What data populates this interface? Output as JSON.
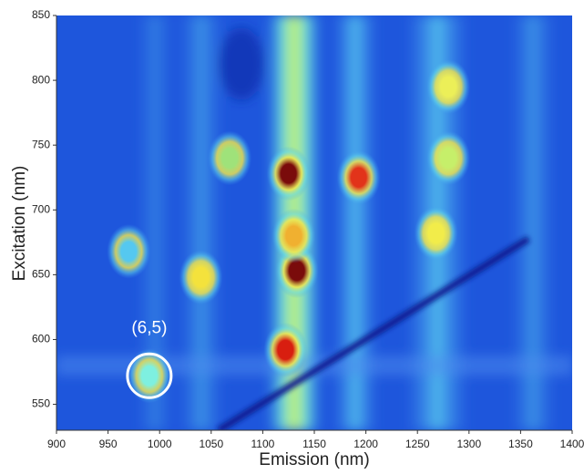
{
  "chart_data": {
    "type": "heatmap",
    "xlabel": "Emission (nm)",
    "ylabel": "Excitation (nm)",
    "xlim": [
      900,
      1400
    ],
    "ylim": [
      530,
      850
    ],
    "xticks": [
      900,
      950,
      1000,
      1050,
      1100,
      1150,
      1200,
      1250,
      1300,
      1350,
      1400
    ],
    "yticks": [
      550,
      600,
      650,
      700,
      750,
      800,
      850
    ],
    "spots": {
      "x": [
        1125,
        1133,
        1122,
        1193,
        1040,
        1068,
        990,
        1268,
        1280,
        970,
        1130,
        1280
      ],
      "y": [
        728,
        653,
        592,
        725,
        648,
        740,
        572,
        682,
        795,
        668,
        680,
        740
      ],
      "colors": [
        "#7a0b0b",
        "#7a0b0b",
        "#d81e10",
        "#e2331a",
        "#f4e23c",
        "#9fe27a",
        "#7ef0e0",
        "#f2ec4a",
        "#ecef58",
        "#55c8f0",
        "#f0b030",
        "#c6ef6a"
      ]
    },
    "annotation": {
      "text": "(6,5)",
      "x": 990,
      "y": 572
    }
  }
}
